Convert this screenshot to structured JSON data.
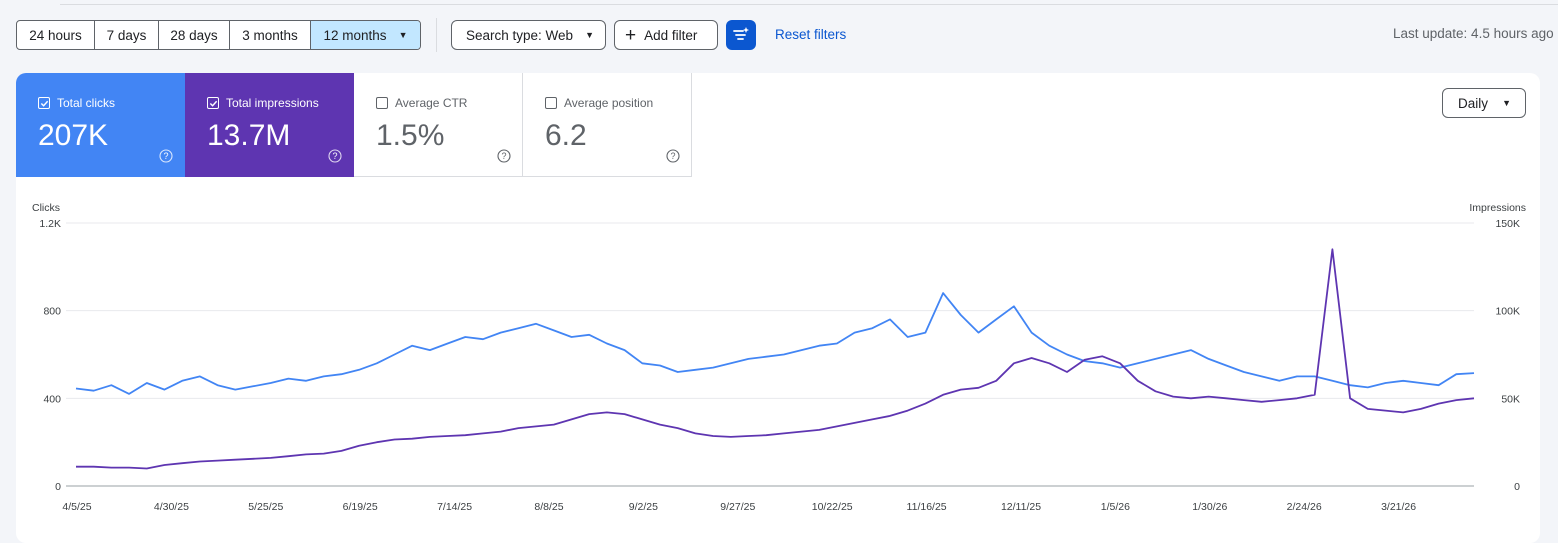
{
  "toolbar": {
    "ranges": [
      "24 hours",
      "7 days",
      "28 days",
      "3 months",
      "12 months"
    ],
    "active_range": "12 months",
    "search_type": "Search type: Web",
    "add_filter": "Add filter",
    "reset_filters": "Reset filters",
    "last_update": "Last update: 4.5 hours ago"
  },
  "metrics": [
    {
      "label": "Total clicks",
      "value": "207K",
      "checked": true,
      "color": "#4285f4"
    },
    {
      "label": "Total impressions",
      "value": "13.7M",
      "checked": true,
      "color": "#5e35b1"
    },
    {
      "label": "Average CTR",
      "value": "1.5%",
      "checked": false,
      "color": "#ffffff"
    },
    {
      "label": "Average position",
      "value": "6.2",
      "checked": false,
      "color": "#ffffff"
    }
  ],
  "granularity": "Daily",
  "colors": {
    "clicks": "#4285f4",
    "impressions": "#5e35b1",
    "accent": "#0b57d0"
  },
  "chart_data": {
    "type": "line",
    "left_axis_label": "Clicks",
    "right_axis_label": "Impressions",
    "left_ticks": [
      "0",
      "400",
      "800",
      "1.2K"
    ],
    "right_ticks": [
      "0",
      "50K",
      "100K",
      "150K"
    ],
    "left_range": [
      0,
      1200
    ],
    "right_range": [
      0,
      150000
    ],
    "x_ticks": [
      "4/5/25",
      "4/30/25",
      "5/25/25",
      "6/19/25",
      "7/14/25",
      "8/8/25",
      "9/2/25",
      "9/27/25",
      "10/22/25",
      "11/16/25",
      "12/11/25",
      "1/5/26",
      "1/30/26",
      "2/24/26",
      "3/21/26"
    ],
    "series": [
      {
        "name": "Clicks",
        "axis": "left",
        "values": [
          445,
          435,
          460,
          420,
          470,
          440,
          480,
          500,
          460,
          440,
          455,
          470,
          490,
          480,
          500,
          510,
          530,
          560,
          600,
          640,
          620,
          650,
          680,
          670,
          700,
          720,
          740,
          710,
          680,
          690,
          650,
          620,
          560,
          550,
          520,
          530,
          540,
          560,
          580,
          590,
          600,
          620,
          640,
          650,
          700,
          720,
          760,
          680,
          700,
          880,
          780,
          700,
          760,
          820,
          700,
          640,
          600,
          570,
          560,
          540,
          560,
          580,
          600,
          620,
          580,
          550,
          520,
          500,
          480,
          500,
          500,
          480,
          460,
          450,
          470,
          480,
          470,
          460,
          510,
          515
        ]
      },
      {
        "name": "Impressions",
        "axis": "right",
        "values": [
          11000,
          11000,
          10500,
          10500,
          10000,
          12000,
          13000,
          14000,
          14500,
          15000,
          15500,
          16000,
          17000,
          18000,
          18500,
          20000,
          23000,
          25000,
          26500,
          27000,
          28000,
          28500,
          29000,
          30000,
          31000,
          33000,
          34000,
          35000,
          38000,
          41000,
          42000,
          41000,
          38000,
          35000,
          33000,
          30000,
          28500,
          28000,
          28500,
          29000,
          30000,
          31000,
          32000,
          34000,
          36000,
          38000,
          40000,
          43000,
          47000,
          52000,
          55000,
          56000,
          60000,
          70000,
          73000,
          70000,
          65000,
          72000,
          74000,
          70000,
          60000,
          54000,
          51000,
          50000,
          51000,
          50000,
          49000,
          48000,
          49000,
          50000,
          52000,
          135000,
          50000,
          44000,
          43000,
          42000,
          44000,
          47000,
          49000,
          50000
        ]
      }
    ]
  }
}
